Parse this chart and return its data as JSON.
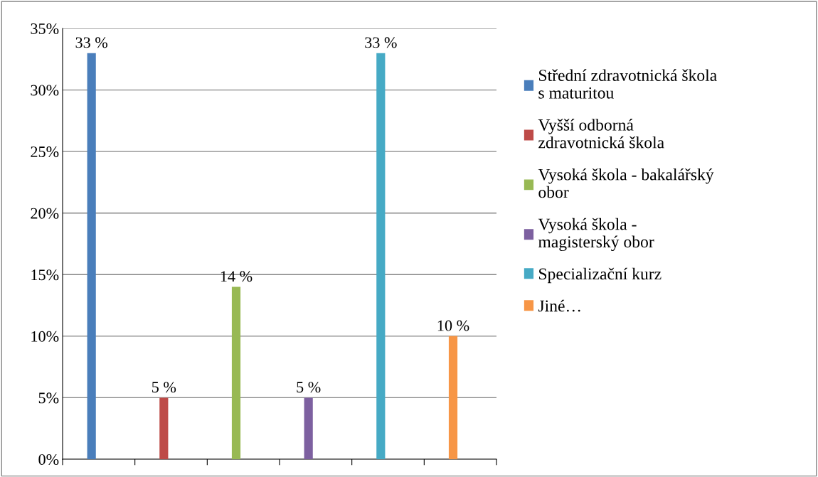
{
  "chart_data": {
    "type": "bar",
    "categories": [
      null,
      null,
      null,
      null,
      null,
      null
    ],
    "series": [
      {
        "name": "Střední zdravotnická škola\ns maturitou",
        "color": "#4a7ebb",
        "values": [
          33,
          null,
          null,
          null,
          null,
          null
        ],
        "value_labels": [
          "33 %",
          null,
          null,
          null,
          null,
          null
        ]
      },
      {
        "name": "Vyšší odborná\nzdravotnická škola",
        "color": "#be4b48",
        "values": [
          null,
          5,
          null,
          null,
          null,
          null
        ],
        "value_labels": [
          null,
          "5 %",
          null,
          null,
          null,
          null
        ]
      },
      {
        "name": "Vysoká škola - bakalářský\nobor",
        "color": "#98b954",
        "values": [
          null,
          null,
          14,
          null,
          null,
          null
        ],
        "value_labels": [
          null,
          null,
          "14 %",
          null,
          null,
          null
        ]
      },
      {
        "name": "Vysoká škola -\nmagisterský obor",
        "color": "#7d60a0",
        "values": [
          null,
          null,
          null,
          5,
          null,
          null
        ],
        "value_labels": [
          null,
          null,
          null,
          "5 %",
          null,
          null
        ]
      },
      {
        "name": "Specializační kurz",
        "color": "#46aac5",
        "values": [
          null,
          null,
          null,
          null,
          33,
          null
        ],
        "value_labels": [
          null,
          null,
          null,
          null,
          "33 %",
          null
        ]
      },
      {
        "name": "Jiné…",
        "color": "#f79646",
        "values": [
          null,
          null,
          null,
          null,
          null,
          10
        ],
        "value_labels": [
          null,
          null,
          null,
          null,
          null,
          "10 %"
        ]
      }
    ],
    "ylim": [
      0,
      35
    ],
    "yticks": [
      {
        "value": 0,
        "label": "0%"
      },
      {
        "value": 5,
        "label": "5%"
      },
      {
        "value": 10,
        "label": "10%"
      },
      {
        "value": 15,
        "label": "15%"
      },
      {
        "value": 20,
        "label": "20%"
      },
      {
        "value": 25,
        "label": "25%"
      },
      {
        "value": 30,
        "label": "30%"
      },
      {
        "value": 35,
        "label": "35%"
      }
    ],
    "grid": "y",
    "legend": "right"
  }
}
